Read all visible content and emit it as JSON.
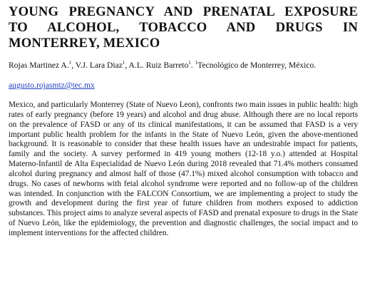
{
  "title": {
    "line1": "YOUNG PREGNANCY AND PRENATAL EXPOSURE",
    "line2": "TO ALCOHOL, TOBACCO AND DRUGS IN",
    "line3": "MONTERREY, MEXICO"
  },
  "authors": {
    "names_1": "Rojas Martinez A.",
    "sup_1": "1",
    "names_2": ", V.J. Lara Diaz",
    "sup_2": "1",
    "names_3": ", A.L. Ruiz Barreto",
    "sup_3": "1",
    "names_4": ". ",
    "sup_aff": "1",
    "affiliation": "Tecnológico de Monterrey, México."
  },
  "contact": {
    "email": "augusto.rojasmtz@tec.mx"
  },
  "abstract": {
    "text": "Mexico, and particularly Monterrey (State of Nuevo Leon), confronts two main issues in public health: high rates of early pregnancy (before 19 years) and alcohol and drug abuse. Although there are no local reports on the prevalence of FASD or any of its clinical manifestations, it can be assumed that FASD is a very important public health problem for the infants in the State of Nuevo León, given the above-mentioned background. It is reasonable to consider that these health issues have an undesirable impact for patients, family and the society. A survey performed in 419 young mothers (12-18 y.o.) attended at Hospital Materno-Infantil de Alta Especialidad de Nuevo León during 2018 revealed that 71.4% mothers consumed alcohol during pregnancy and almost half of those (47.1%) mixed alcohol consumption with tobacco and drugs. No cases of newborns with fetal alcohol syndrome were reported and no follow-up of the children was intended. In conjunction with the FALCON Consortium, we are implementing a project to study the growth and development during the first year of future children from mothers exposed to addiction substances. This project aims to analyze several aspects of FASD and prenatal exposure to drugs in the State of Nuevo León, like the epidemiology, the prevention and diagnostic challenges, the social impact and to implement interventions for the affected children."
  }
}
